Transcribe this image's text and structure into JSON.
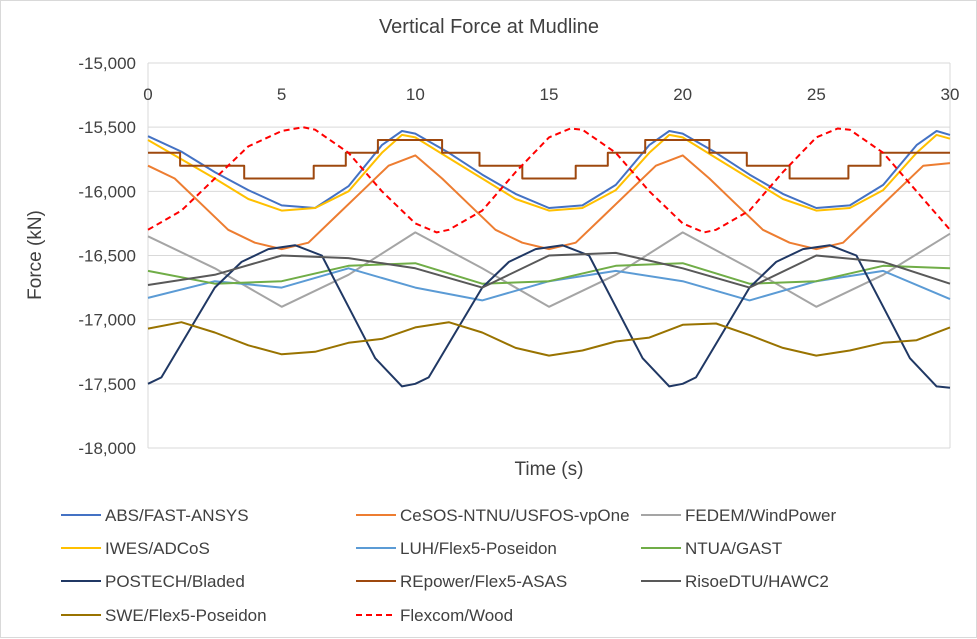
{
  "chart_data": {
    "type": "line",
    "title": "Vertical Force at Mudline",
    "xlabel": "Time (s)",
    "ylabel": "Force (kN)",
    "xlim": [
      0,
      30
    ],
    "ylim": [
      -18000,
      -15000
    ],
    "x_ticks": [
      0,
      5,
      10,
      15,
      20,
      25,
      30
    ],
    "x_tick_labels": [
      "0",
      "5",
      "10",
      "15",
      "20",
      "25",
      "30"
    ],
    "y_ticks": [
      -15000,
      -15500,
      -16000,
      -16500,
      -17000,
      -17500,
      -18000
    ],
    "y_tick_labels": [
      "-15,000",
      "-15,500",
      "-16,000",
      "-16,500",
      "-17,000",
      "-17,500",
      "-18,000"
    ],
    "grid": "horizontal",
    "x_axis_position": "top",
    "legend_position": "bottom",
    "series": [
      {
        "name": "ABS/FAST-ANSYS",
        "color": "#4472c4",
        "dash": "solid",
        "x": [
          0,
          1.25,
          2.5,
          3.75,
          5,
          6.25,
          7.5,
          8.75,
          9.5,
          10,
          11.25,
          12.5,
          13.75,
          15,
          16.25,
          17.5,
          18.75,
          19.5,
          20,
          21.25,
          22.5,
          23.75,
          25,
          26.25,
          27.5,
          28.75,
          29.5,
          30
        ],
        "y": [
          -15570,
          -15690,
          -15850,
          -15990,
          -16110,
          -16130,
          -15960,
          -15640,
          -15530,
          -15550,
          -15700,
          -15870,
          -16020,
          -16130,
          -16110,
          -15950,
          -15640,
          -15530,
          -15550,
          -15700,
          -15870,
          -16020,
          -16130,
          -16110,
          -15950,
          -15640,
          -15530,
          -15560
        ]
      },
      {
        "name": "CeSOS-NTNU/USFOS-vpOne",
        "color": "#ed7d31",
        "dash": "solid",
        "x": [
          0,
          1,
          2,
          3,
          4,
          5,
          6,
          7,
          8,
          9,
          10,
          11,
          12,
          13,
          14,
          15,
          16,
          17,
          18,
          19,
          20,
          21,
          22,
          23,
          24,
          25,
          26,
          27,
          28,
          29,
          30
        ],
        "y": [
          -15800,
          -15900,
          -16100,
          -16300,
          -16400,
          -16450,
          -16400,
          -16200,
          -16000,
          -15800,
          -15720,
          -15900,
          -16100,
          -16300,
          -16400,
          -16450,
          -16400,
          -16200,
          -16000,
          -15800,
          -15720,
          -15900,
          -16100,
          -16300,
          -16400,
          -16450,
          -16400,
          -16200,
          -16000,
          -15800,
          -15780
        ]
      },
      {
        "name": "FEDEM/WindPower",
        "color": "#a5a5a5",
        "dash": "solid",
        "x": [
          0,
          2.5,
          5,
          7.5,
          10,
          12.5,
          15,
          17.5,
          20,
          22.5,
          25,
          27.5,
          30
        ],
        "y": [
          -16350,
          -16600,
          -16900,
          -16650,
          -16320,
          -16600,
          -16900,
          -16650,
          -16320,
          -16600,
          -16900,
          -16650,
          -16330
        ]
      },
      {
        "name": "IWES/ADCoS",
        "color": "#ffc000",
        "dash": "solid",
        "x": [
          0,
          1.25,
          2.5,
          3.75,
          5,
          6.25,
          7.5,
          8.75,
          9.5,
          10,
          11.25,
          12.5,
          13.75,
          15,
          16.25,
          17.5,
          18.75,
          19.5,
          20,
          21.25,
          22.5,
          23.75,
          25,
          26.25,
          27.5,
          28.75,
          29.5,
          30
        ],
        "y": [
          -15600,
          -15750,
          -15900,
          -16060,
          -16150,
          -16130,
          -16000,
          -15700,
          -15560,
          -15580,
          -15740,
          -15900,
          -16060,
          -16150,
          -16130,
          -15990,
          -15700,
          -15560,
          -15580,
          -15740,
          -15900,
          -16060,
          -16150,
          -16130,
          -15990,
          -15700,
          -15560,
          -15590
        ]
      },
      {
        "name": "LUH/Flex5-Poseidon",
        "color": "#5b9bd5",
        "dash": "solid",
        "x": [
          0,
          2.5,
          5,
          7.5,
          10,
          12.5,
          15,
          17.5,
          20,
          22.5,
          25,
          27.5,
          30
        ],
        "y": [
          -16830,
          -16700,
          -16750,
          -16600,
          -16750,
          -16850,
          -16700,
          -16620,
          -16700,
          -16850,
          -16700,
          -16620,
          -16840
        ]
      },
      {
        "name": "NTUA/GAST",
        "color": "#70ad47",
        "dash": "solid",
        "x": [
          0,
          2.5,
          5,
          7.5,
          10,
          12.5,
          15,
          17.5,
          20,
          22.5,
          25,
          27.5,
          30
        ],
        "y": [
          -16620,
          -16720,
          -16700,
          -16580,
          -16560,
          -16720,
          -16700,
          -16580,
          -16560,
          -16720,
          -16700,
          -16580,
          -16600
        ]
      },
      {
        "name": "POSTECH/Bladed",
        "color": "#203864",
        "dash": "solid",
        "x": [
          0,
          0.5,
          1.5,
          2.5,
          3.5,
          4.5,
          5.5,
          6.5,
          7.5,
          8.5,
          9.5,
          10,
          10.5,
          11.5,
          12.5,
          13.5,
          14.5,
          15.5,
          16.5,
          17.5,
          18.5,
          19.5,
          20,
          20.5,
          21.5,
          22.5,
          23.5,
          24.5,
          25.5,
          26.5,
          27.5,
          28.5,
          29.5,
          30
        ],
        "y": [
          -17500,
          -17450,
          -17100,
          -16750,
          -16550,
          -16450,
          -16420,
          -16500,
          -16900,
          -17300,
          -17520,
          -17500,
          -17450,
          -17100,
          -16750,
          -16550,
          -16450,
          -16420,
          -16500,
          -16900,
          -17300,
          -17520,
          -17500,
          -17450,
          -17100,
          -16750,
          -16550,
          -16450,
          -16420,
          -16500,
          -16900,
          -17300,
          -17520,
          -17530
        ]
      },
      {
        "name": "REpower/Flex5-ASAS",
        "color": "#9e480e",
        "dash": "solid",
        "x": [
          0,
          1.2,
          1.2,
          2.2,
          2.2,
          3.6,
          3.6,
          6.2,
          6.2,
          7.4,
          7.4,
          8.6,
          8.6,
          11,
          11,
          12.4,
          12.4,
          14,
          14,
          16,
          16,
          17.2,
          17.2,
          18.6,
          18.6,
          21,
          21,
          22.4,
          22.4,
          24,
          24,
          26.2,
          26.2,
          27.4,
          27.4,
          30
        ],
        "y": [
          -15700,
          -15700,
          -15800,
          -15800,
          -15800,
          -15800,
          -15900,
          -15900,
          -15800,
          -15800,
          -15700,
          -15700,
          -15600,
          -15600,
          -15700,
          -15700,
          -15800,
          -15800,
          -15900,
          -15900,
          -15800,
          -15800,
          -15700,
          -15700,
          -15600,
          -15600,
          -15700,
          -15700,
          -15800,
          -15800,
          -15900,
          -15900,
          -15800,
          -15800,
          -15700,
          -15700
        ]
      },
      {
        "name": "RisoeDTU/HAWC2",
        "color": "#595959",
        "dash": "solid",
        "x": [
          0,
          2.5,
          5,
          7.5,
          10,
          12.5,
          15,
          17.5,
          20,
          22.5,
          25,
          27.5,
          30
        ],
        "y": [
          -16730,
          -16650,
          -16500,
          -16520,
          -16600,
          -16750,
          -16500,
          -16480,
          -16600,
          -16750,
          -16500,
          -16550,
          -16720
        ]
      },
      {
        "name": "SWE/Flex5-Poseidon",
        "color": "#997300",
        "dash": "solid",
        "x": [
          0,
          1.25,
          2.5,
          3.75,
          5,
          6.25,
          7.5,
          8.75,
          10,
          11.25,
          12.5,
          13.75,
          15,
          16.25,
          17.5,
          18.75,
          20,
          21.25,
          22.5,
          23.75,
          25,
          26.25,
          27.5,
          28.75,
          30
        ],
        "y": [
          -17070,
          -17020,
          -17100,
          -17200,
          -17270,
          -17250,
          -17180,
          -17150,
          -17060,
          -17020,
          -17100,
          -17220,
          -17280,
          -17240,
          -17170,
          -17140,
          -17040,
          -17030,
          -17120,
          -17220,
          -17280,
          -17240,
          -17180,
          -17160,
          -17060
        ]
      },
      {
        "name": "Flexcom/Wood",
        "color": "#ff0000",
        "dash": "dashed",
        "x": [
          0,
          1.25,
          2.5,
          3.75,
          5,
          5.8,
          6.25,
          7.5,
          8.75,
          10,
          10.8,
          11.25,
          12.5,
          13.75,
          15,
          15.8,
          16.25,
          17.5,
          18.75,
          20,
          20.8,
          21.25,
          22.5,
          23.75,
          25,
          25.8,
          26.25,
          27.5,
          28.75,
          30
        ],
        "y": [
          -16300,
          -16150,
          -15900,
          -15650,
          -15530,
          -15500,
          -15520,
          -15700,
          -16000,
          -16250,
          -16320,
          -16300,
          -16150,
          -15850,
          -15580,
          -15510,
          -15520,
          -15700,
          -16000,
          -16250,
          -16320,
          -16300,
          -16150,
          -15850,
          -15580,
          -15510,
          -15520,
          -15700,
          -16000,
          -16300
        ]
      }
    ]
  }
}
